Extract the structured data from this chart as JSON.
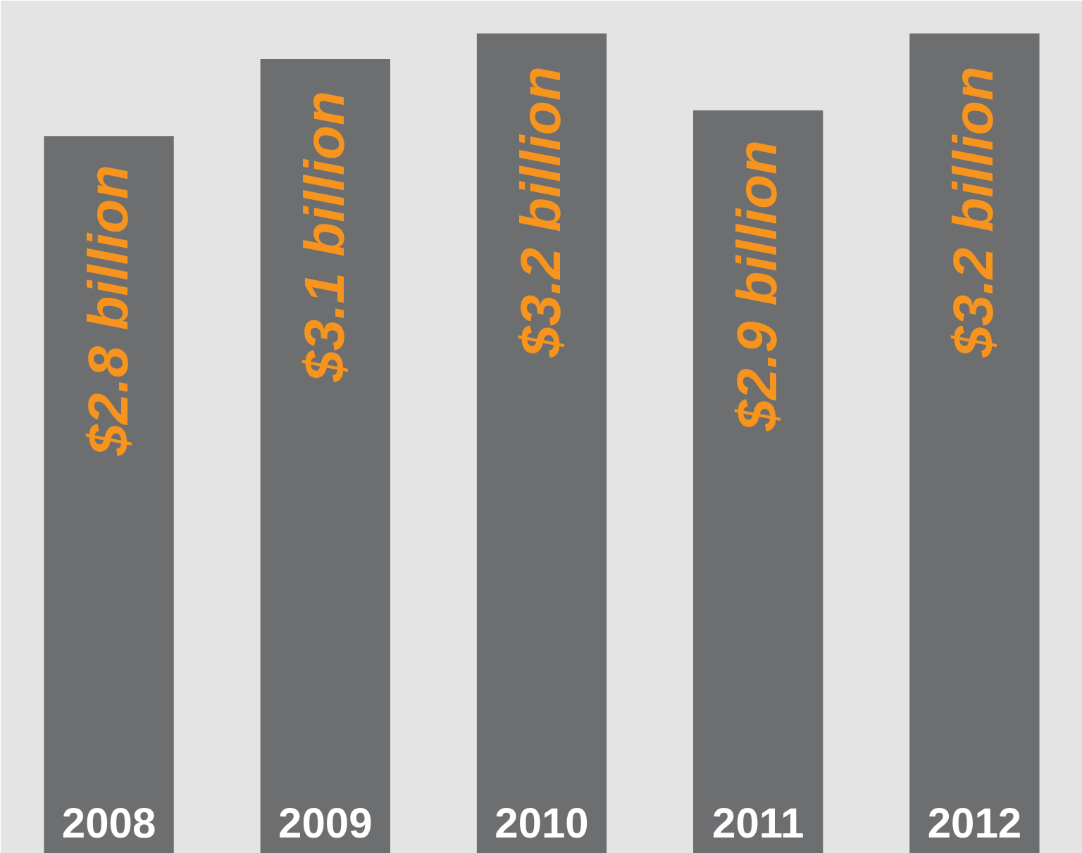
{
  "chart_data": {
    "type": "bar",
    "categories": [
      "2008",
      "2009",
      "2010",
      "2011",
      "2012"
    ],
    "values": [
      2.8,
      3.1,
      3.2,
      2.9,
      3.2
    ],
    "value_labels": [
      "$2.8 billion",
      "$3.1 billion",
      "$3.2 billion",
      "$2.9 billion",
      "$3.2 billion"
    ],
    "color": "#6d6e70",
    "tick_labels": false
  }
}
